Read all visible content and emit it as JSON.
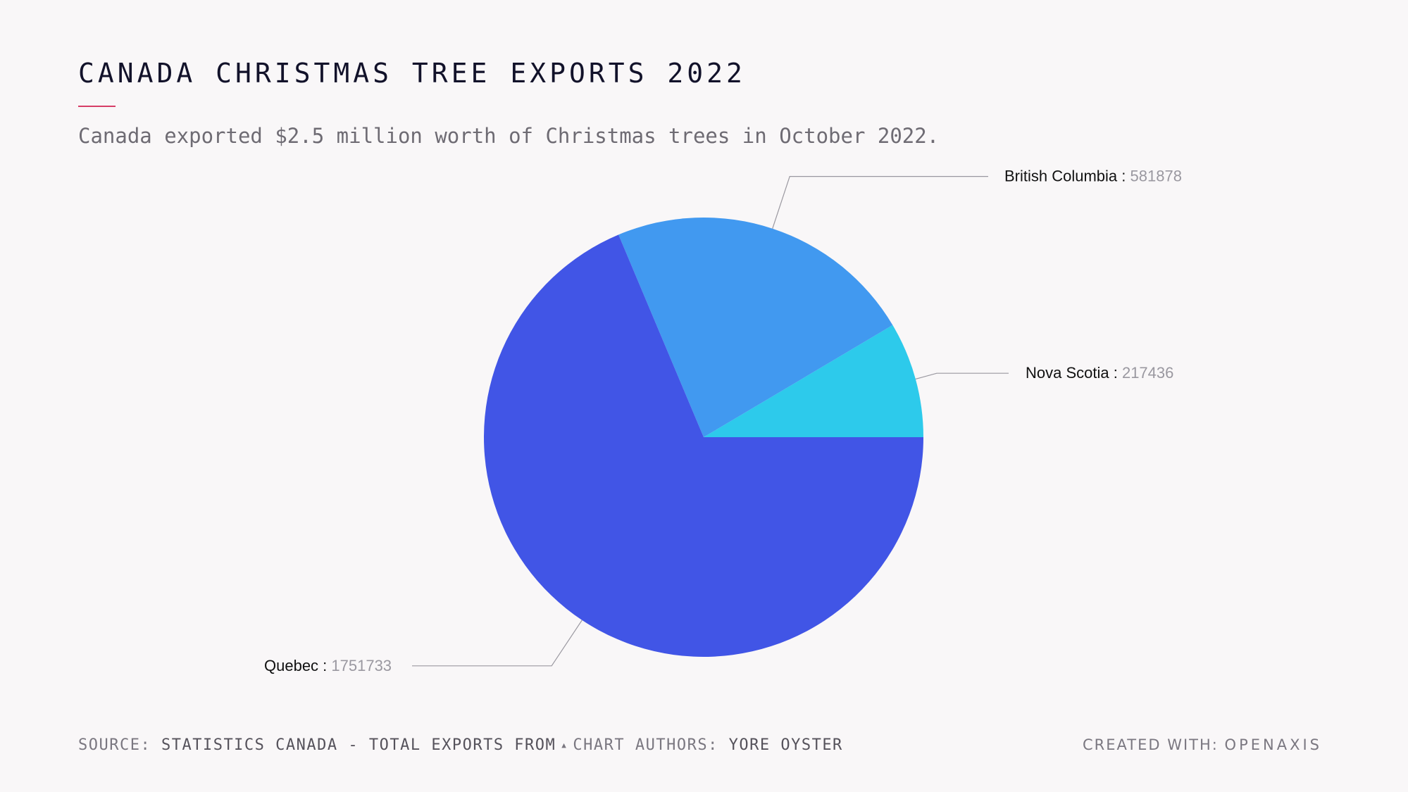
{
  "header": {
    "title": "CANADA CHRISTMAS TREE EXPORTS 2022",
    "subtitle": "Canada exported $2.5 million worth of Christmas trees in October 2022."
  },
  "chart_data": {
    "type": "pie",
    "slices": [
      {
        "label": "Quebec",
        "value": 1751733,
        "color": "#4155e6"
      },
      {
        "label": "British Columbia",
        "value": 581878,
        "color": "#4199f0"
      },
      {
        "label": "Nova Scotia",
        "value": 217436,
        "color": "#2dcaeb"
      }
    ],
    "label_separator": " : "
  },
  "footer": {
    "source_label": "SOURCE:",
    "source_value": "STATISTICS CANADA - TOTAL EXPORTS FROM",
    "authors_label": "CHART AUTHORS:",
    "authors_value": "YORE OYSTER",
    "created_label": "CREATED WITH:",
    "created_value": "OPENAXIS"
  },
  "colors": {
    "accent": "#d63e67",
    "background": "#f9f7f8"
  }
}
